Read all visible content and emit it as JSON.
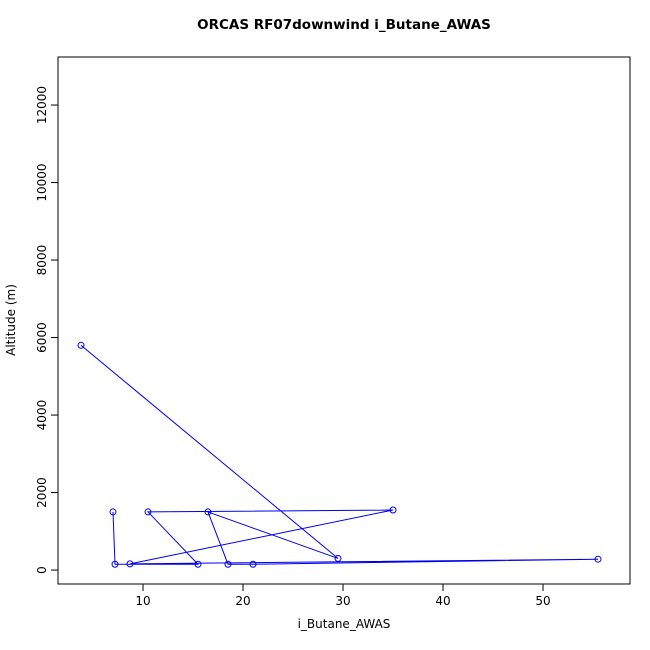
{
  "chart_data": {
    "type": "line",
    "title": "ORCAS RF07downwind i_Butane_AWAS",
    "xlabel": "i_Butane_AWAS",
    "ylabel": "Altitude (m)",
    "x_ticks": [
      10,
      20,
      30,
      40,
      50
    ],
    "y_ticks": [
      0,
      2000,
      4000,
      6000,
      8000,
      10000,
      12000
    ],
    "xlim": [
      1.5,
      58.7
    ],
    "ylim": [
      -360,
      13240
    ],
    "grid": false,
    "legend": "none",
    "marker": "open-circle",
    "series_color": "#0000EE",
    "axis_color": "#000000",
    "points": [
      {
        "x": 3.8,
        "y": 5800
      },
      {
        "x": 29.5,
        "y": 300
      },
      {
        "x": 16.5,
        "y": 1500
      },
      {
        "x": 18.5,
        "y": 150
      },
      {
        "x": 21.0,
        "y": 150
      },
      {
        "x": 55.5,
        "y": 280
      },
      {
        "x": 8.7,
        "y": 160
      },
      {
        "x": 35.0,
        "y": 1550
      },
      {
        "x": 10.5,
        "y": 1500
      },
      {
        "x": 15.5,
        "y": 150
      },
      {
        "x": 7.2,
        "y": 150
      },
      {
        "x": 7.0,
        "y": 1500
      }
    ]
  }
}
